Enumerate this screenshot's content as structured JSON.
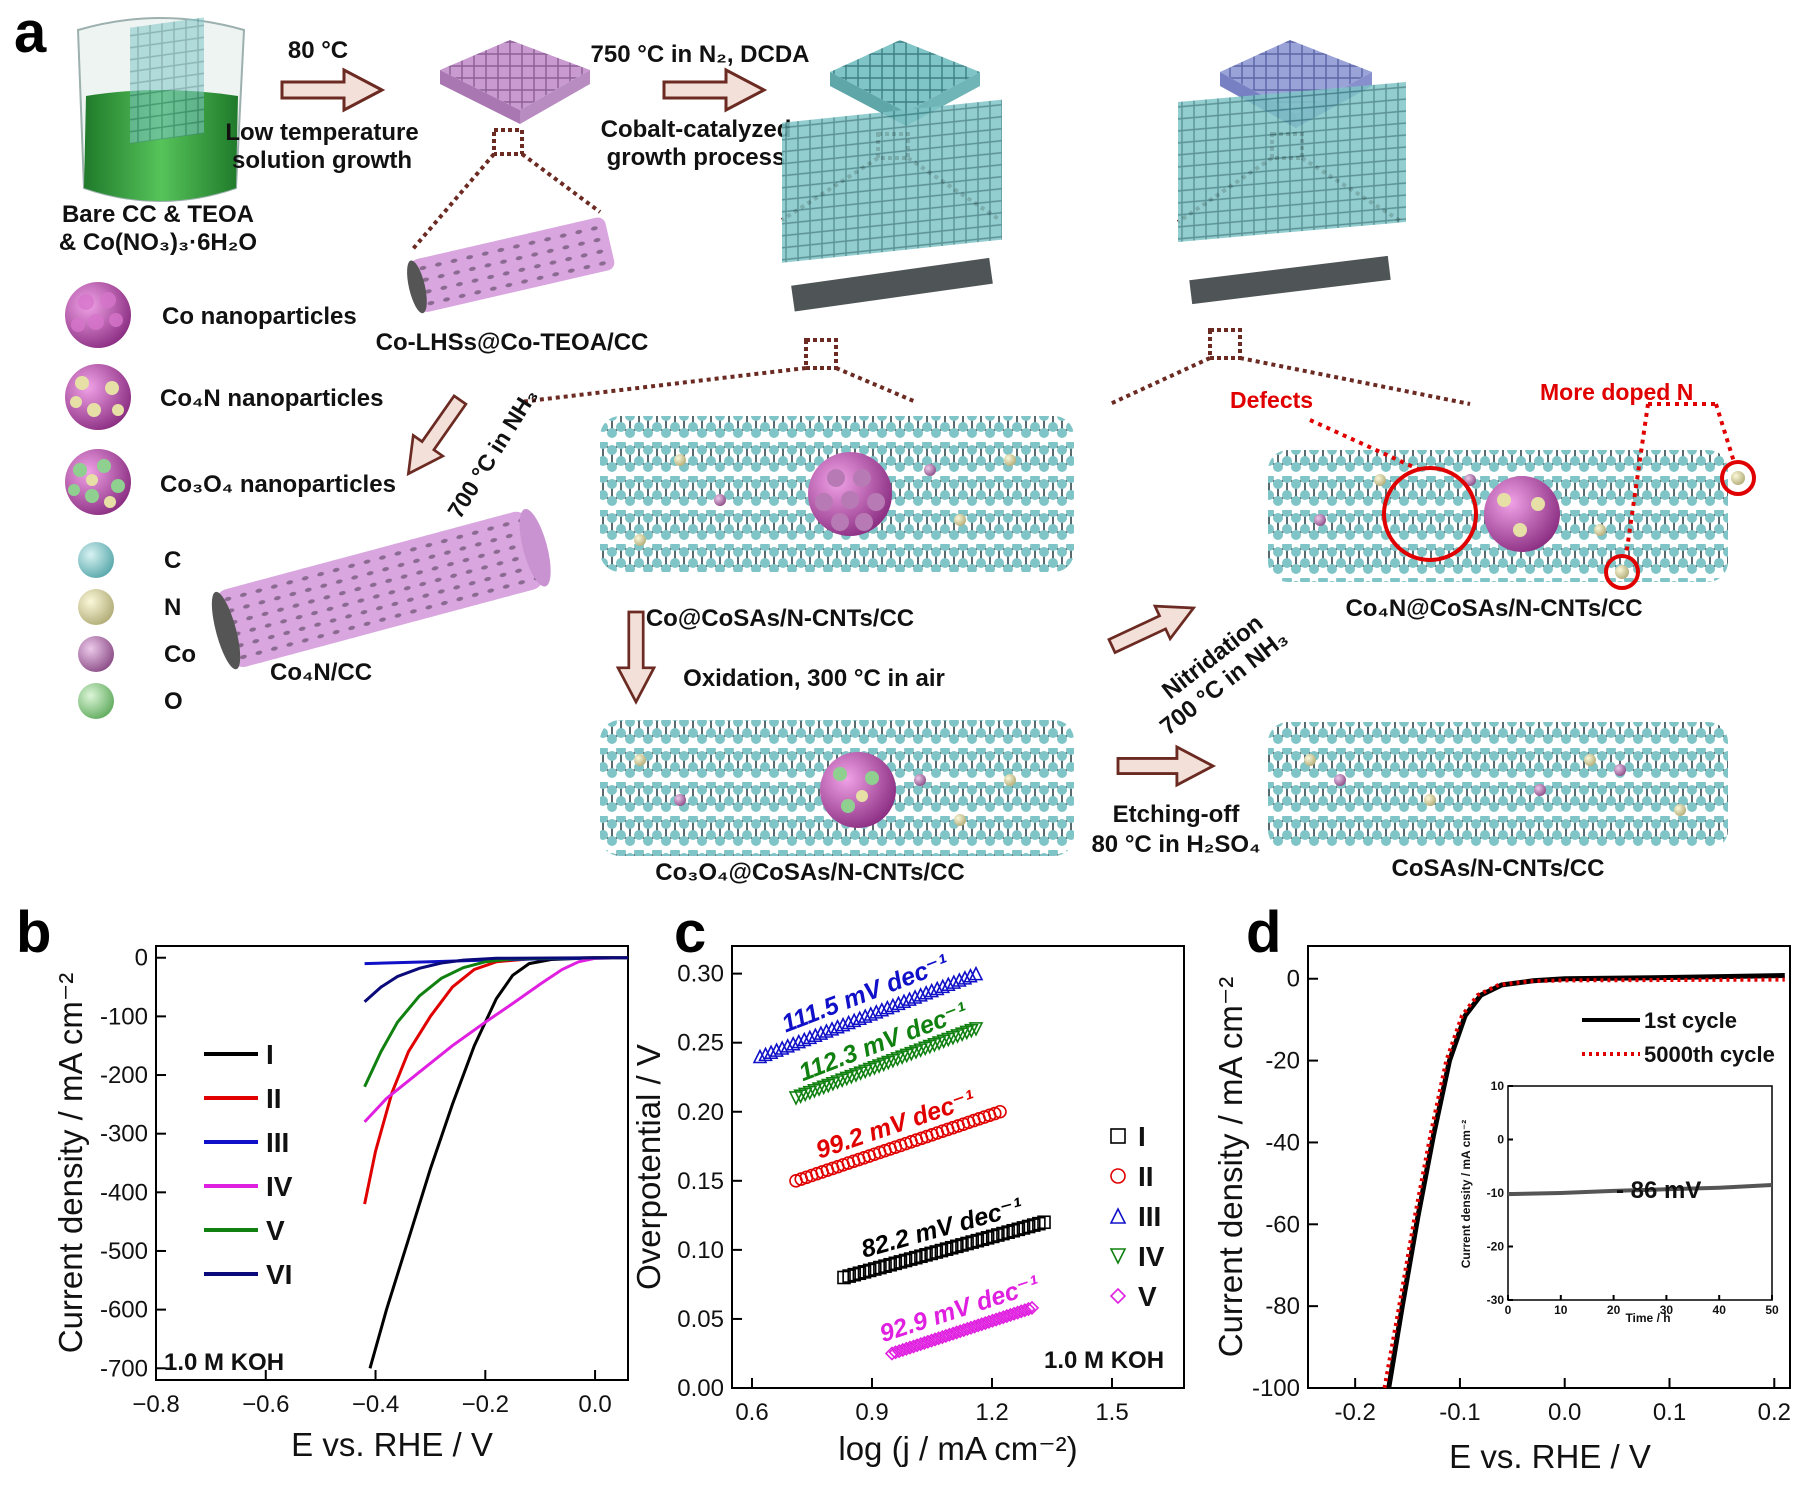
{
  "panels": {
    "a": {
      "letter": "a",
      "start_label": [
        "Bare CC & TEOA",
        "& Co(NO₃)₃·6H₂O"
      ],
      "step1": {
        "temp": "80 °C",
        "line1": "Low temperature",
        "line2": "solution growth"
      },
      "step2": {
        "temp": "750 °C in N₂, DCDA",
        "line1": "Cobalt-catalyzed",
        "line2": "growth process"
      },
      "step3": {
        "label": "700 °C in NH₃"
      },
      "step4": {
        "label": "Oxidation, 300 °C in air"
      },
      "step5": {
        "line1": "Nitridation",
        "line2": "700 °C in NH₃"
      },
      "step6": {
        "line1": "Etching-off",
        "line2": "80 °C in H₂SO₄"
      },
      "products": {
        "co_lhss": "Co-LHSs@Co-TEOA/CC",
        "co4n_cc": "Co₄N/CC",
        "co_cosas": "Co@CoSAs/N-CNTs/CC",
        "co3o4_cosas": "Co₃O₄@CoSAs/N-CNTs/CC",
        "co4n_cosas": "Co₄N@CoSAs/N-CNTs/CC",
        "cosas": "CoSAs/N-CNTs/CC"
      },
      "annotations": {
        "defects": "Defects",
        "more_doped_n": "More doped N"
      },
      "legend_particles": [
        "Co nanoparticles",
        "Co₄N nanoparticles",
        "Co₃O₄ nanoparticles"
      ],
      "legend_atoms": [
        {
          "symbol": "C",
          "color": "#7fc4c6"
        },
        {
          "symbol": "N",
          "color": "#d9d4a4"
        },
        {
          "symbol": "Co",
          "color": "#b47db0"
        },
        {
          "symbol": "O",
          "color": "#8fd090"
        }
      ],
      "colors": {
        "solution": "#2f9a3a",
        "cloth_pink": "#c99ad0",
        "cloth_teal": "#7fc4c6",
        "cloth_blue": "#9aa3d8",
        "cnt_stick": "#5a6b6f",
        "arrow_fill": "#f3e0d8",
        "arrow_stroke": "#6b2a22",
        "dotted_line": "#6b2a22"
      }
    },
    "b": {
      "letter": "b",
      "note": "1.0 M KOH",
      "chart_data": {
        "type": "line",
        "xlabel": "E vs. RHE / V",
        "ylabel": "Current density / mA cm⁻²",
        "xlim": [
          -0.8,
          0.06
        ],
        "ylim": [
          -720,
          20
        ],
        "xticks": [
          -0.8,
          -0.6,
          -0.4,
          -0.2,
          0.0
        ],
        "xtick_labels": [
          "−0.8",
          "−0.6",
          "−0.4",
          "−0.2",
          "0.0"
        ],
        "yticks": [
          0,
          -100,
          -200,
          -300,
          -400,
          -500,
          -600,
          -700
        ],
        "ytick_labels": [
          "0",
          "-100",
          "-200",
          "-300",
          "-400",
          "-500",
          "-600",
          "-700"
        ],
        "legend_position": "left",
        "series": [
          {
            "name": "I",
            "color": "#000000",
            "points": [
              [
                -0.41,
                -700
              ],
              [
                -0.38,
                -600
              ],
              [
                -0.34,
                -480
              ],
              [
                -0.3,
                -360
              ],
              [
                -0.26,
                -250
              ],
              [
                -0.22,
                -150
              ],
              [
                -0.18,
                -70
              ],
              [
                -0.15,
                -30
              ],
              [
                -0.12,
                -10
              ],
              [
                -0.08,
                -3
              ],
              [
                0,
                0
              ],
              [
                0.06,
                0
              ]
            ]
          },
          {
            "name": "II",
            "color": "#e00000",
            "points": [
              [
                -0.42,
                -420
              ],
              [
                -0.4,
                -330
              ],
              [
                -0.37,
                -230
              ],
              [
                -0.34,
                -160
              ],
              [
                -0.3,
                -100
              ],
              [
                -0.26,
                -50
              ],
              [
                -0.22,
                -20
              ],
              [
                -0.18,
                -7
              ],
              [
                -0.12,
                -2
              ],
              [
                0,
                0
              ],
              [
                0.06,
                0
              ]
            ]
          },
          {
            "name": "III",
            "color": "#1010c8",
            "points": [
              [
                -0.42,
                -10
              ],
              [
                -0.3,
                -7
              ],
              [
                -0.2,
                -4
              ],
              [
                -0.1,
                -2
              ],
              [
                0,
                -1
              ],
              [
                0.06,
                0
              ]
            ]
          },
          {
            "name": "IV",
            "color": "#e020e0",
            "points": [
              [
                -0.42,
                -280
              ],
              [
                -0.38,
                -240
              ],
              [
                -0.32,
                -195
              ],
              [
                -0.26,
                -150
              ],
              [
                -0.2,
                -110
              ],
              [
                -0.15,
                -78
              ],
              [
                -0.1,
                -45
              ],
              [
                -0.06,
                -20
              ],
              [
                -0.03,
                -7
              ],
              [
                0,
                -1
              ],
              [
                0.06,
                0
              ]
            ]
          },
          {
            "name": "V",
            "color": "#108010",
            "points": [
              [
                -0.42,
                -220
              ],
              [
                -0.39,
                -160
              ],
              [
                -0.36,
                -110
              ],
              [
                -0.32,
                -65
              ],
              [
                -0.28,
                -35
              ],
              [
                -0.24,
                -17
              ],
              [
                -0.2,
                -7
              ],
              [
                -0.15,
                -2
              ],
              [
                0,
                0
              ],
              [
                0.06,
                0
              ]
            ]
          },
          {
            "name": "VI",
            "color": "#0a0a7a",
            "points": [
              [
                -0.42,
                -75
              ],
              [
                -0.39,
                -50
              ],
              [
                -0.36,
                -32
              ],
              [
                -0.32,
                -18
              ],
              [
                -0.28,
                -9
              ],
              [
                -0.24,
                -4
              ],
              [
                -0.18,
                -1
              ],
              [
                0,
                0
              ],
              [
                0.06,
                0
              ]
            ]
          }
        ]
      }
    },
    "c": {
      "letter": "c",
      "note": "1.0 M KOH",
      "chart_data": {
        "type": "scatter",
        "xlabel": "log (j / mA cm⁻²)",
        "ylabel": "Overpotential / V",
        "xlim": [
          0.55,
          1.68
        ],
        "ylim": [
          0.0,
          0.32
        ],
        "xticks": [
          0.6,
          0.9,
          1.2,
          1.5
        ],
        "xtick_labels": [
          "0.6",
          "0.9",
          "1.2",
          "1.5"
        ],
        "yticks": [
          0.0,
          0.05,
          0.1,
          0.15,
          0.2,
          0.25,
          0.3
        ],
        "ytick_labels": [
          "0.00",
          "0.05",
          "0.10",
          "0.15",
          "0.20",
          "0.25",
          "0.30"
        ],
        "legend_position": "right",
        "series": [
          {
            "name": "I",
            "marker": "square",
            "color": "#000000",
            "x_range": [
              0.83,
              1.33
            ],
            "y_range": [
              0.08,
              0.12
            ],
            "slope_label": "82.2 mV dec⁻¹"
          },
          {
            "name": "II",
            "marker": "circle",
            "color": "#e00000",
            "x_range": [
              0.71,
              1.22
            ],
            "y_range": [
              0.15,
              0.2
            ],
            "slope_label": "99.2 mV dec⁻¹"
          },
          {
            "name": "III",
            "marker": "triangle-up",
            "color": "#1010c8",
            "x_range": [
              0.62,
              1.16
            ],
            "y_range": [
              0.24,
              0.3
            ],
            "slope_label": "111.5 mV dec⁻¹"
          },
          {
            "name": "IV",
            "marker": "triangle-down",
            "color": "#108010",
            "x_range": [
              0.71,
              1.16
            ],
            "y_range": [
              0.21,
              0.26
            ],
            "slope_label": "112.3 mV dec⁻¹"
          },
          {
            "name": "V",
            "marker": "diamond",
            "color": "#e020e0",
            "x_range": [
              0.95,
              1.3
            ],
            "y_range": [
              0.025,
              0.058
            ],
            "slope_label": "92.9 mV dec⁻¹"
          }
        ]
      }
    },
    "d": {
      "letter": "d",
      "chart_data": {
        "type": "line",
        "xlabel": "E vs. RHE / V",
        "ylabel": "Current density / mA cm⁻²",
        "xlim": [
          -0.245,
          0.215
        ],
        "ylim": [
          -100,
          8
        ],
        "xticks": [
          -0.2,
          -0.1,
          0.0,
          0.1,
          0.2
        ],
        "xtick_labels": [
          "-0.2",
          "-0.1",
          "0.0",
          "0.1",
          "0.2"
        ],
        "yticks": [
          0,
          -20,
          -40,
          -60,
          -80,
          -100
        ],
        "ytick_labels": [
          "0",
          "-20",
          "-40",
          "-60",
          "-80",
          "-100"
        ],
        "legend_position": "top-right",
        "series": [
          {
            "name": "1st cycle",
            "color": "#000000",
            "style": "solid",
            "points": [
              [
                -0.168,
                -100
              ],
              [
                -0.155,
                -80
              ],
              [
                -0.14,
                -58
              ],
              [
                -0.125,
                -38
              ],
              [
                -0.11,
                -20
              ],
              [
                -0.095,
                -9
              ],
              [
                -0.08,
                -4
              ],
              [
                -0.06,
                -1.5
              ],
              [
                -0.03,
                -0.5
              ],
              [
                0.0,
                0
              ],
              [
                0.1,
                0.3
              ],
              [
                0.21,
                0.8
              ]
            ]
          },
          {
            "name": "5000th cycle",
            "color": "#e00000",
            "style": "dotted",
            "points": [
              [
                -0.172,
                -100
              ],
              [
                -0.158,
                -80
              ],
              [
                -0.143,
                -58
              ],
              [
                -0.128,
                -38
              ],
              [
                -0.113,
                -20
              ],
              [
                -0.098,
                -9
              ],
              [
                -0.083,
                -4
              ],
              [
                -0.063,
                -1.5
              ],
              [
                -0.033,
                -0.6
              ],
              [
                0.0,
                -0.4
              ],
              [
                0.1,
                -0.3
              ],
              [
                0.21,
                -0.2
              ]
            ]
          }
        ],
        "inset": {
          "type": "line",
          "xlabel": "Time / h",
          "ylabel": "Current density / mA cm⁻²",
          "xlim": [
            0,
            50
          ],
          "ylim": [
            -30,
            10
          ],
          "xticks": [
            0,
            10,
            20,
            30,
            40,
            50
          ],
          "xtick_labels": [
            "0",
            "10",
            "20",
            "30",
            "40",
            "50"
          ],
          "yticks": [
            10,
            0,
            -10,
            -20,
            -30
          ],
          "ytick_labels": [
            "10",
            "0",
            "-10",
            "-20",
            "-30"
          ],
          "annotation": "- 86 mV",
          "series": [
            {
              "name": "",
              "color": "#555555",
              "points": [
                [
                  0,
                  -10.2
                ],
                [
                  10,
                  -10
                ],
                [
                  20,
                  -9.6
                ],
                [
                  30,
                  -9.3
                ],
                [
                  40,
                  -9.0
                ],
                [
                  50,
                  -8.5
                ]
              ]
            }
          ]
        }
      }
    }
  }
}
